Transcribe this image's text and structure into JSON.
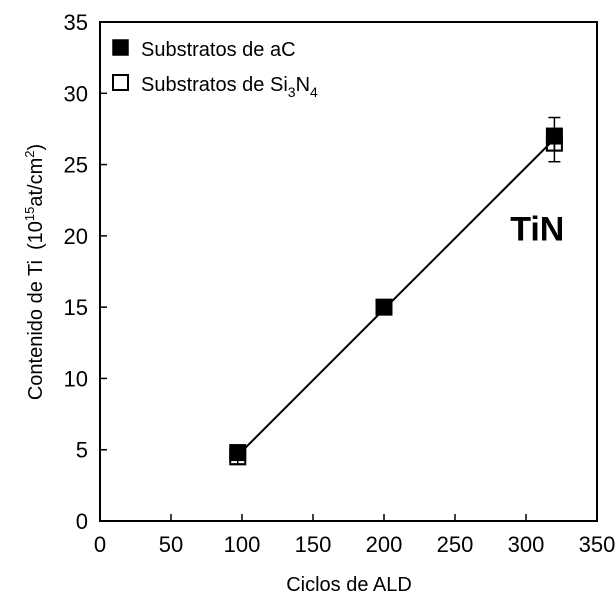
{
  "chart_data": {
    "type": "scatter",
    "xlabel": "Ciclos de ALD",
    "ylabel": {
      "main": "Contenido de Ti",
      "unit_open": "(10",
      "unit_exp": "15",
      "unit_mid": "at/cm",
      "unit_exp2": "2",
      "unit_close": ")"
    },
    "xlim": [
      0,
      350
    ],
    "ylim": [
      0,
      35
    ],
    "x_ticks": [
      0,
      50,
      100,
      150,
      200,
      250,
      300,
      350
    ],
    "y_ticks": [
      0,
      5,
      10,
      15,
      20,
      25,
      30,
      35
    ],
    "grid": false,
    "legend_position": "top-left",
    "series": [
      {
        "name": "Substratos de aC",
        "name_main": "Substratos de",
        "name_material": "aC",
        "marker": "filled-square",
        "color": "#000000",
        "points": [
          {
            "x": 97,
            "y": 4.8
          },
          {
            "x": 200,
            "y": 15.0
          },
          {
            "x": 320,
            "y": 27.0,
            "err_low": 26.0,
            "err_high": 28.3
          }
        ]
      },
      {
        "name": "Substratos de Si3N4",
        "name_main": "Substratos de",
        "name_material": "Si",
        "name_sub1": "3",
        "name_mid": "N",
        "name_sub2": "4",
        "marker": "open-square",
        "color": "#000000",
        "points": [
          {
            "x": 97,
            "y": 4.5,
            "err_low": 4.0,
            "err_high": 5.0
          },
          {
            "x": 320,
            "y": 26.5,
            "err_low": 25.2,
            "err_high": 27.5
          }
        ]
      }
    ],
    "fit_line": {
      "x": [
        97,
        320
      ],
      "y": [
        4.6,
        26.8
      ]
    },
    "annotation": {
      "text": "TiN",
      "x": 310,
      "y": 20.5
    }
  }
}
